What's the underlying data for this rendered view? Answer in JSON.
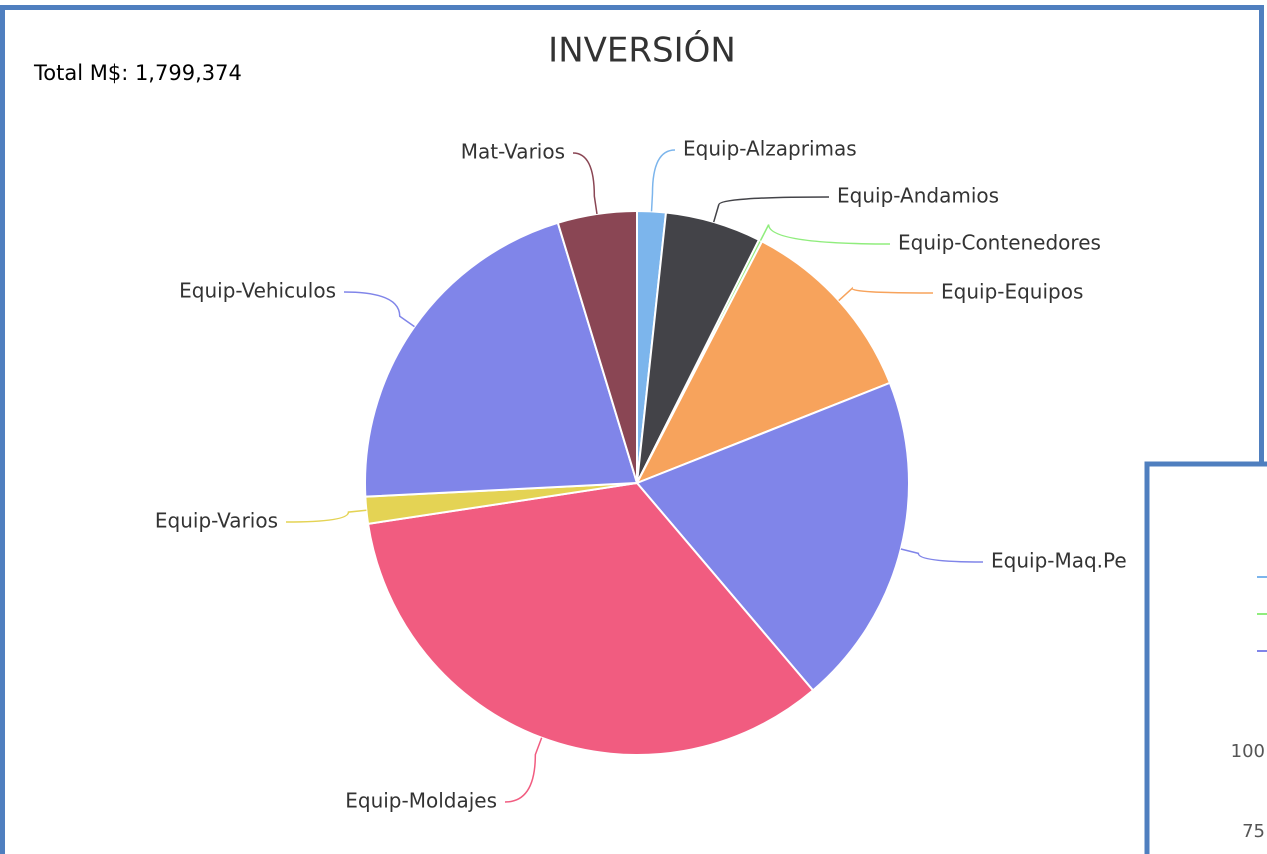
{
  "chart_data": {
    "type": "pie",
    "title": "INVERSIÓN",
    "subtitle": "Total M$: 1,799,374",
    "categories": [
      "Equip-Alzaprimas",
      "Equip-Andamios",
      "Equip-Contenedores",
      "Equip-Equipos",
      "Equip-Maq.Pe",
      "Equip-Moldajes",
      "Equip-Varios",
      "Equip-Vehiculos",
      "Mat-Varios"
    ],
    "values": [
      1.7,
      5.7,
      0.2,
      11.4,
      19.8,
      33.8,
      1.6,
      21.1,
      4.7
    ],
    "colors": [
      "#7cb5ec",
      "#434348",
      "#90ed7d",
      "#f7a35c",
      "#8085e9",
      "#f15c80",
      "#e4d354",
      "#8085e9",
      "#8a4654"
    ]
  },
  "partial_chart": {
    "yticks": [
      100,
      75
    ],
    "legend_colors": [
      "#7cb5ec",
      "#90ed7d",
      "#8085e9"
    ]
  }
}
